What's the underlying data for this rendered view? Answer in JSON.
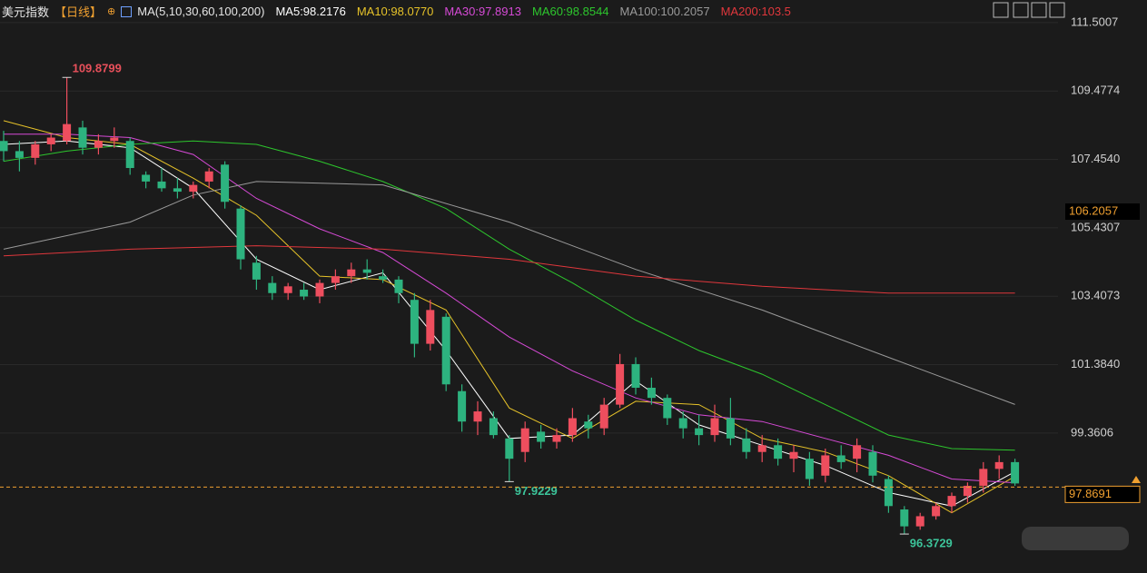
{
  "chart_data": {
    "type": "candlestick",
    "title": "美元指数",
    "period": "【日线】",
    "indicator": "MA(5,10,30,60,100,200)",
    "up_color": "#ee4e5e",
    "down_color": "#2db37f",
    "ylim": [
      95.22,
      112.17
    ],
    "yticks": [
      111.5007,
      109.4774,
      {
        "value": 107.454,
        "label": "107.4540"
      },
      105.4307,
      103.4073,
      {
        "value": 101.384,
        "label": "101.3840"
      },
      99.3606
    ],
    "grid": true,
    "ohlc": [
      [
        108.0,
        108.3,
        107.4,
        107.7
      ],
      [
        107.7,
        108.0,
        107.1,
        107.5
      ],
      [
        107.5,
        108.0,
        107.3,
        107.9
      ],
      [
        107.9,
        108.2,
        107.7,
        108.1
      ],
      [
        108.0,
        109.8799,
        107.9,
        108.5
      ],
      [
        108.4,
        108.6,
        107.6,
        107.8
      ],
      [
        107.8,
        108.2,
        107.6,
        108.0
      ],
      [
        108.0,
        108.4,
        107.8,
        108.1
      ],
      [
        108.0,
        108.1,
        107.0,
        107.2
      ],
      [
        107.0,
        107.1,
        106.6,
        106.8
      ],
      [
        106.8,
        107.2,
        106.5,
        106.6
      ],
      [
        106.6,
        106.9,
        106.3,
        106.5
      ],
      [
        106.5,
        106.8,
        106.3,
        106.7
      ],
      [
        106.8,
        107.2,
        106.6,
        107.1
      ],
      [
        107.3,
        107.4,
        106.0,
        106.2
      ],
      [
        106.0,
        106.1,
        104.2,
        104.5
      ],
      [
        104.4,
        104.6,
        103.6,
        103.9
      ],
      [
        103.8,
        104.0,
        103.3,
        103.5
      ],
      [
        103.5,
        103.8,
        103.3,
        103.7
      ],
      [
        103.6,
        103.8,
        103.3,
        103.4
      ],
      [
        103.4,
        103.9,
        103.2,
        103.8
      ],
      [
        103.8,
        104.2,
        103.6,
        104.0
      ],
      [
        104.0,
        104.4,
        103.8,
        104.2
      ],
      [
        104.2,
        104.5,
        103.9,
        104.1
      ],
      [
        104.0,
        104.2,
        103.8,
        103.9
      ],
      [
        103.9,
        104.0,
        103.2,
        103.5
      ],
      [
        103.3,
        103.5,
        101.6,
        102.0
      ],
      [
        102.0,
        103.3,
        101.8,
        103.0
      ],
      [
        102.8,
        102.9,
        100.6,
        100.8
      ],
      [
        100.6,
        100.8,
        99.4,
        99.7
      ],
      [
        99.7,
        100.3,
        99.3,
        100.0
      ],
      [
        99.8,
        100.0,
        99.2,
        99.3
      ],
      [
        99.2,
        99.3,
        97.9229,
        98.6
      ],
      [
        98.8,
        99.7,
        98.5,
        99.5
      ],
      [
        99.4,
        99.6,
        98.9,
        99.1
      ],
      [
        99.1,
        99.5,
        98.9,
        99.3
      ],
      [
        99.3,
        100.1,
        99.1,
        99.8
      ],
      [
        99.7,
        99.9,
        99.2,
        99.5
      ],
      [
        99.5,
        100.4,
        99.3,
        100.2
      ],
      [
        100.2,
        101.7,
        100.1,
        101.4
      ],
      [
        101.4,
        101.6,
        100.5,
        100.7
      ],
      [
        100.7,
        101.0,
        100.2,
        100.4
      ],
      [
        100.4,
        100.5,
        99.6,
        99.8
      ],
      [
        99.8,
        100.0,
        99.2,
        99.5
      ],
      [
        99.5,
        99.9,
        99.0,
        99.3
      ],
      [
        99.3,
        100.2,
        99.1,
        99.8
      ],
      [
        99.8,
        100.4,
        99.0,
        99.2
      ],
      [
        99.2,
        99.5,
        98.6,
        98.8
      ],
      [
        98.8,
        99.3,
        98.5,
        99.0
      ],
      [
        99.0,
        99.2,
        98.4,
        98.6
      ],
      [
        98.6,
        99.0,
        98.2,
        98.8
      ],
      [
        98.6,
        98.8,
        97.8,
        98.0
      ],
      [
        98.1,
        98.9,
        97.9,
        98.7
      ],
      [
        98.7,
        99.0,
        98.3,
        98.5
      ],
      [
        98.6,
        99.2,
        98.2,
        99.0
      ],
      [
        98.8,
        99.0,
        97.9,
        98.1
      ],
      [
        98.0,
        98.1,
        97.0,
        97.2
      ],
      [
        97.1,
        97.2,
        96.3729,
        96.6
      ],
      [
        96.6,
        97.0,
        96.5,
        96.9
      ],
      [
        96.9,
        97.3,
        96.8,
        97.2
      ],
      [
        97.2,
        97.6,
        97.0,
        97.5
      ],
      [
        97.5,
        97.9,
        97.3,
        97.8
      ],
      [
        97.8,
        98.5,
        97.6,
        98.3
      ],
      [
        98.3,
        98.7,
        98.0,
        98.5
      ],
      [
        98.5,
        98.6,
        97.8,
        97.8691
      ]
    ],
    "series": [
      {
        "name": "MA5:98.2176",
        "color": "#ffffff",
        "x": [
          0,
          4,
          8,
          12,
          16,
          20,
          24,
          28,
          32,
          36,
          40,
          44,
          48,
          52,
          56,
          60,
          64
        ],
        "values": [
          107.9,
          108.0,
          107.8,
          106.6,
          104.5,
          103.6,
          104.1,
          101.8,
          99.2,
          99.3,
          100.9,
          99.6,
          99.0,
          98.4,
          97.6,
          97.2,
          98.2176
        ]
      },
      {
        "name": "MA10:98.0770",
        "color": "#e6c229",
        "x": [
          0,
          4,
          8,
          12,
          16,
          20,
          24,
          28,
          32,
          36,
          40,
          44,
          48,
          52,
          56,
          60,
          64
        ],
        "values": [
          108.6,
          108.1,
          107.9,
          106.9,
          105.8,
          104.0,
          103.9,
          103.0,
          100.1,
          99.2,
          100.3,
          100.2,
          99.2,
          98.8,
          98.1,
          97.0,
          98.077
        ]
      },
      {
        "name": "MA30:97.8913",
        "color": "#d64ad6",
        "x": [
          0,
          4,
          8,
          12,
          16,
          20,
          24,
          28,
          32,
          36,
          40,
          44,
          48,
          52,
          56,
          60,
          64
        ],
        "values": [
          108.2,
          108.2,
          108.1,
          107.6,
          106.3,
          105.4,
          104.7,
          103.5,
          102.2,
          101.2,
          100.4,
          99.9,
          99.7,
          99.2,
          98.7,
          98.0,
          97.8913
        ]
      },
      {
        "name": "MA60:98.8544",
        "color": "#2dc62d",
        "x": [
          0,
          4,
          8,
          12,
          16,
          20,
          24,
          28,
          32,
          36,
          40,
          44,
          48,
          52,
          56,
          60,
          64
        ],
        "values": [
          107.4,
          107.7,
          107.9,
          108.0,
          107.9,
          107.4,
          106.8,
          106.0,
          104.8,
          103.8,
          102.7,
          101.8,
          101.1,
          100.2,
          99.3,
          98.9,
          98.8544
        ]
      },
      {
        "name": "MA100:100.2057",
        "color": "#9a9a9a",
        "x": [
          0,
          8,
          12,
          16,
          24,
          32,
          40,
          48,
          56,
          64
        ],
        "values": [
          104.8,
          105.6,
          106.4,
          106.8,
          106.7,
          105.6,
          104.2,
          103.0,
          101.6,
          100.2057
        ]
      },
      {
        "name": "MA200:103.5",
        "color": "#e0373c",
        "x": [
          0,
          8,
          16,
          24,
          32,
          40,
          48,
          56,
          64
        ],
        "values": [
          104.6,
          104.8,
          104.9,
          104.8,
          104.5,
          104.0,
          103.7,
          103.5,
          103.5
        ]
      }
    ],
    "annotations": [
      109.8799,
      97.9229,
      96.3729
    ],
    "price_markers": [
      106.2057,
      97.8691
    ]
  }
}
